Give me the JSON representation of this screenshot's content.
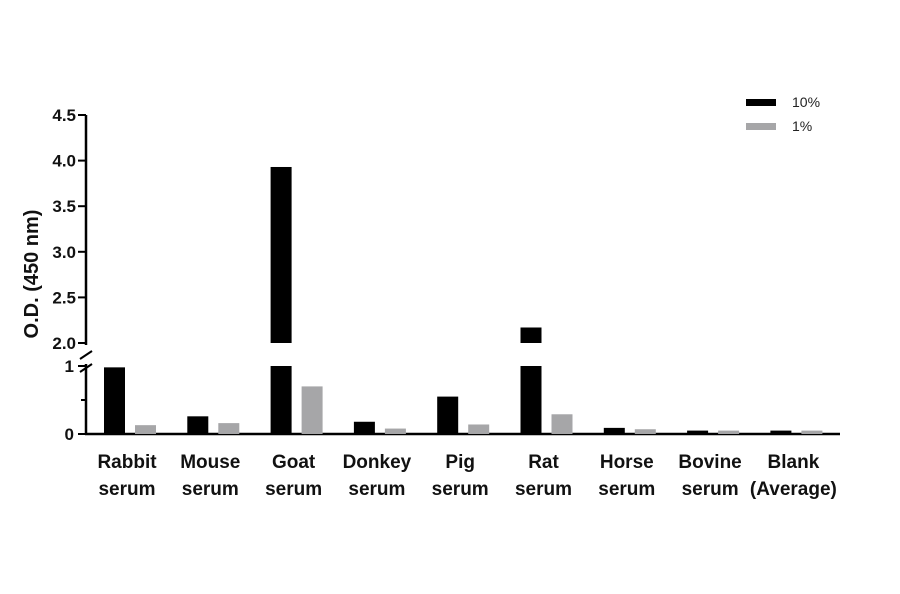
{
  "chart_data": {
    "type": "bar",
    "title": "",
    "xlabel": "",
    "ylabel": "O.D. (450 nm)",
    "categories": [
      [
        "Rabbit",
        "serum"
      ],
      [
        "Mouse",
        "serum"
      ],
      [
        "Goat",
        "serum"
      ],
      [
        "Donkey",
        "serum"
      ],
      [
        "Pig",
        "serum"
      ],
      [
        "Rat",
        "serum"
      ],
      [
        "Horse",
        "serum"
      ],
      [
        "Bovine",
        "serum"
      ],
      [
        "Blank",
        "(Average)"
      ]
    ],
    "series": [
      {
        "name": "10%",
        "color": "#000000",
        "values": [
          0.98,
          0.26,
          3.93,
          0.18,
          0.55,
          2.17,
          0.09,
          0.05,
          0.05
        ]
      },
      {
        "name": "1%",
        "color": "#a6a6a8",
        "values": [
          0.13,
          0.16,
          0.7,
          0.08,
          0.14,
          0.29,
          0.07,
          0.05,
          0.05
        ]
      }
    ],
    "broken_axis": {
      "lower_range": [
        0,
        1
      ],
      "upper_range": [
        2.0,
        4.5
      ],
      "lower_ticks": [
        "0",
        "1"
      ],
      "upper_ticks": [
        "2.0",
        "2.5",
        "3.0",
        "3.5",
        "4.0",
        "4.5"
      ]
    },
    "legend_position": "top-right",
    "grid": false
  }
}
